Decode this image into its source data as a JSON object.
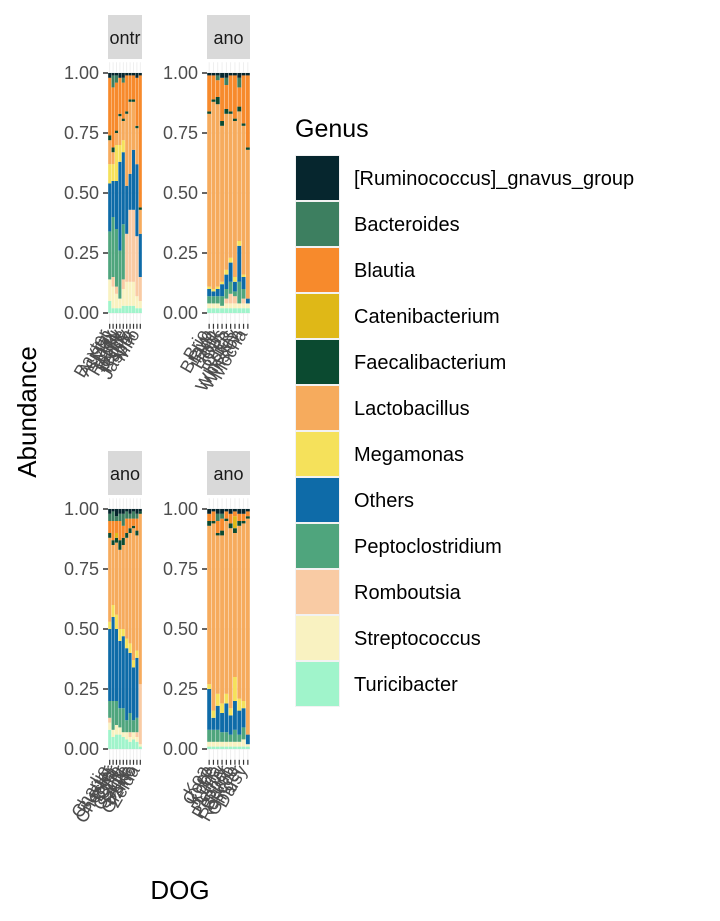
{
  "chart_data": {
    "type": "bar",
    "stacked": true,
    "xlabel": "DOG",
    "ylabel": "Abundance",
    "ylim": [
      0,
      1
    ],
    "yticks": [
      "0.00",
      "0.25",
      "0.50",
      "0.75",
      "1.00"
    ],
    "grid": true,
    "legend": {
      "title": "Genus",
      "placement": "right",
      "entries": [
        {
          "name": "[Ruminococcus]_gnavus_group",
          "color": "#06262E"
        },
        {
          "name": "Bacteroides",
          "color": "#3D7F60"
        },
        {
          "name": "Blautia",
          "color": "#F78A2C"
        },
        {
          "name": "Catenibacterium",
          "color": "#DFB817"
        },
        {
          "name": "Faecalibacterium",
          "color": "#0B4A30"
        },
        {
          "name": "Lactobacillus",
          "color": "#F6AB5D"
        },
        {
          "name": "Megamonas",
          "color": "#F5E15B"
        },
        {
          "name": "Others",
          "color": "#0E6BA8"
        },
        {
          "name": "Peptoclostridium",
          "color": "#4FA57D"
        },
        {
          "name": "Romboutsia",
          "color": "#F9CBA4"
        },
        {
          "name": "Streptococcus",
          "color": "#F9F2C1"
        },
        {
          "name": "Turicibacter",
          "color": "#A0F4CB"
        }
      ]
    },
    "panels": [
      {
        "strip": "ontr",
        "x_tick_labels": [
          "Baxter",
          "Austin",
          "Max",
          "Lulu",
          "Rocky",
          "Toffee",
          "Teddy",
          "Pablo",
          "Jasper",
          "Milo"
        ],
        "bars": [
          [
            0.02,
            0.0,
            0.24,
            0.0,
            0.02,
            0.1,
            0.08,
            0.2,
            0.2,
            0.0,
            0.09,
            0.05
          ],
          [
            0.01,
            0.05,
            0.25,
            0.0,
            0.02,
            0.05,
            0.07,
            0.15,
            0.25,
            0.04,
            0.09,
            0.02
          ],
          [
            0.01,
            0.03,
            0.2,
            0.0,
            0.01,
            0.05,
            0.15,
            0.2,
            0.24,
            0.03,
            0.06,
            0.02
          ],
          [
            0.02,
            0.0,
            0.15,
            0.0,
            0.01,
            0.12,
            0.07,
            0.37,
            0.2,
            0.0,
            0.04,
            0.02
          ],
          [
            0.02,
            0.02,
            0.15,
            0.0,
            0.01,
            0.08,
            0.05,
            0.3,
            0.23,
            0.04,
            0.07,
            0.03
          ],
          [
            0.01,
            0.0,
            0.15,
            0.0,
            0.01,
            0.3,
            0.0,
            0.2,
            0.0,
            0.2,
            0.1,
            0.03
          ],
          [
            0.01,
            0.0,
            0.1,
            0.0,
            0.01,
            0.3,
            0.0,
            0.15,
            0.0,
            0.3,
            0.1,
            0.03
          ],
          [
            0.01,
            0.0,
            0.1,
            0.0,
            0.01,
            0.2,
            0.0,
            0.25,
            0.0,
            0.3,
            0.1,
            0.03
          ],
          [
            0.02,
            0.0,
            0.2,
            0.0,
            0.01,
            0.15,
            0.0,
            0.3,
            0.0,
            0.25,
            0.05,
            0.02
          ],
          [
            0.01,
            0.0,
            0.55,
            0.0,
            0.01,
            0.1,
            0.0,
            0.18,
            0.0,
            0.1,
            0.03,
            0.02
          ]
        ]
      },
      {
        "strip": "ano",
        "x_tick_labels": [
          "Brio",
          "Bravo",
          "Fido",
          "Hank",
          "Otis",
          "Oreo",
          "Rufus",
          "Whiskey",
          "Winston",
          "Mocha"
        ],
        "bars": [
          [
            0.01,
            0.0,
            0.15,
            0.0,
            0.01,
            0.72,
            0.01,
            0.03,
            0.03,
            0.0,
            0.02,
            0.02
          ],
          [
            0.01,
            0.0,
            0.1,
            0.0,
            0.01,
            0.78,
            0.01,
            0.02,
            0.03,
            0.0,
            0.02,
            0.02
          ],
          [
            0.01,
            0.02,
            0.07,
            0.0,
            0.03,
            0.76,
            0.01,
            0.03,
            0.03,
            0.0,
            0.02,
            0.02
          ],
          [
            0.02,
            0.0,
            0.18,
            0.0,
            0.02,
            0.65,
            0.01,
            0.05,
            0.04,
            0.0,
            0.01,
            0.02
          ],
          [
            0.02,
            0.03,
            0.1,
            0.0,
            0.02,
            0.65,
            0.02,
            0.06,
            0.04,
            0.02,
            0.02,
            0.02
          ],
          [
            0.01,
            0.0,
            0.15,
            0.0,
            0.01,
            0.6,
            0.02,
            0.08,
            0.05,
            0.04,
            0.02,
            0.02
          ],
          [
            0.01,
            0.0,
            0.18,
            0.0,
            0.01,
            0.65,
            0.02,
            0.04,
            0.02,
            0.03,
            0.02,
            0.02
          ],
          [
            0.02,
            0.04,
            0.08,
            0.0,
            0.02,
            0.54,
            0.02,
            0.15,
            0.09,
            0.0,
            0.02,
            0.02
          ],
          [
            0.01,
            0.0,
            0.2,
            0.0,
            0.01,
            0.62,
            0.01,
            0.05,
            0.04,
            0.02,
            0.02,
            0.02
          ],
          [
            0.01,
            0.0,
            0.3,
            0.0,
            0.01,
            0.62,
            0.0,
            0.02,
            0.0,
            0.0,
            0.02,
            0.02
          ]
        ]
      },
      {
        "strip": "ano",
        "x_tick_labels": [
          "Charlie",
          "Buster",
          "Chester",
          "Bear",
          "Ollie",
          "Oscar",
          "Sadie",
          "Duke",
          "Gizmo",
          "Zelda"
        ],
        "bars": [
          [
            0.02,
            0.03,
            0.05,
            0.0,
            0.02,
            0.35,
            0.03,
            0.3,
            0.07,
            0.02,
            0.03,
            0.08
          ],
          [
            0.01,
            0.04,
            0.08,
            0.0,
            0.02,
            0.25,
            0.05,
            0.35,
            0.12,
            0.0,
            0.03,
            0.05
          ],
          [
            0.03,
            0.02,
            0.05,
            0.02,
            0.02,
            0.3,
            0.06,
            0.3,
            0.1,
            0.0,
            0.04,
            0.06
          ],
          [
            0.02,
            0.03,
            0.08,
            0.0,
            0.04,
            0.33,
            0.05,
            0.28,
            0.08,
            0.0,
            0.03,
            0.06
          ],
          [
            0.02,
            0.05,
            0.05,
            0.0,
            0.03,
            0.35,
            0.03,
            0.3,
            0.1,
            0.0,
            0.02,
            0.05
          ],
          [
            0.01,
            0.03,
            0.06,
            0.0,
            0.02,
            0.42,
            0.04,
            0.3,
            0.05,
            0.0,
            0.03,
            0.04
          ],
          [
            0.02,
            0.02,
            0.04,
            0.0,
            0.02,
            0.46,
            0.04,
            0.25,
            0.08,
            0.02,
            0.02,
            0.03
          ],
          [
            0.01,
            0.03,
            0.03,
            0.0,
            0.01,
            0.55,
            0.03,
            0.22,
            0.05,
            0.0,
            0.03,
            0.04
          ],
          [
            0.02,
            0.02,
            0.05,
            0.0,
            0.02,
            0.48,
            0.03,
            0.25,
            0.06,
            0.02,
            0.02,
            0.03
          ],
          [
            0.01,
            0.0,
            0.0,
            0.0,
            0.01,
            0.71,
            0.0,
            0.0,
            0.0,
            0.25,
            0.01,
            0.01
          ]
        ]
      },
      {
        "strip": "ano",
        "x_tick_labels": [
          "Koa",
          "Coco",
          "Kobe",
          "Luna",
          "Penny",
          "Pepper",
          "Bruno",
          "Roscoe",
          "Ginger",
          "Daisy"
        ],
        "bars": [
          [
            0.02,
            0.0,
            0.03,
            0.0,
            0.02,
            0.66,
            0.02,
            0.17,
            0.05,
            0.0,
            0.02,
            0.01
          ],
          [
            0.01,
            0.0,
            0.04,
            0.0,
            0.01,
            0.78,
            0.03,
            0.05,
            0.05,
            0.0,
            0.02,
            0.01
          ],
          [
            0.02,
            0.03,
            0.05,
            0.0,
            0.01,
            0.66,
            0.05,
            0.1,
            0.05,
            0.0,
            0.02,
            0.01
          ],
          [
            0.02,
            0.02,
            0.05,
            0.0,
            0.02,
            0.7,
            0.04,
            0.08,
            0.04,
            0.0,
            0.02,
            0.01
          ],
          [
            0.01,
            0.0,
            0.03,
            0.0,
            0.01,
            0.72,
            0.04,
            0.12,
            0.04,
            0.0,
            0.02,
            0.01
          ],
          [
            0.02,
            0.0,
            0.04,
            0.0,
            0.02,
            0.75,
            0.03,
            0.08,
            0.03,
            0.0,
            0.02,
            0.01
          ],
          [
            0.01,
            0.0,
            0.02,
            0.05,
            0.02,
            0.6,
            0.1,
            0.12,
            0.05,
            0.0,
            0.02,
            0.01
          ],
          [
            0.02,
            0.0,
            0.03,
            0.0,
            0.02,
            0.72,
            0.05,
            0.1,
            0.03,
            0.0,
            0.02,
            0.01
          ],
          [
            0.02,
            0.0,
            0.03,
            0.0,
            0.01,
            0.74,
            0.03,
            0.08,
            0.05,
            0.0,
            0.03,
            0.01
          ],
          [
            0.01,
            0.0,
            0.02,
            0.0,
            0.01,
            0.9,
            0.0,
            0.04,
            0.0,
            0.0,
            0.01,
            0.01
          ]
        ]
      }
    ]
  }
}
